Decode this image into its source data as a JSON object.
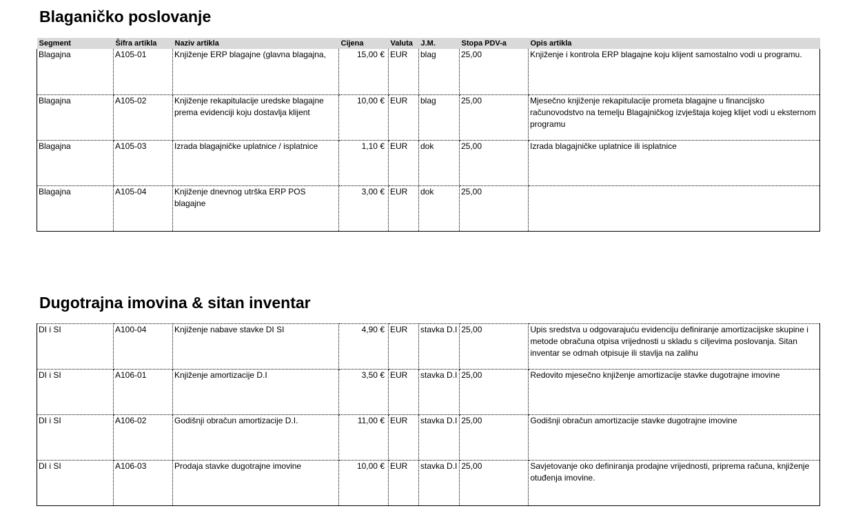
{
  "sections": [
    {
      "title": "Blaganičko poslovanje",
      "headers": [
        "Segment",
        "Šifra artikla",
        "Naziv artikla",
        "Cijena",
        "Valuta",
        "J.M.",
        "Stopa PDV-a",
        "Opis artikla"
      ],
      "rows": [
        [
          "Blagajna",
          "A105-01",
          "Knjiženje ERP blagajne (glavna blagajna,",
          "15,00 €",
          "EUR",
          "blag",
          "25,00",
          "Knjiženje i kontrola ERP blagajne koju klijent samostalno vodi u programu."
        ],
        [
          "Blagajna",
          "A105-02",
          "Knjiženje rekapitulacije uredske blagajne prema evidenciji koju dostavlja klijent",
          "10,00 €",
          "EUR",
          "blag",
          "25,00",
          "Mjesečno knjiženje rekapitulacije prometa blagajne u financijsko računovodstvo na temelju Blagajničkog izvještaja kojeg klijet vodi u eksternom programu"
        ],
        [
          "Blagajna",
          "A105-03",
          "Izrada blagajničke uplatnice / isplatnice",
          "1,10 €",
          "EUR",
          "dok",
          "25,00",
          "Izrada blagajničke uplatnice ili isplatnice"
        ],
        [
          "Blagajna",
          "A105-04",
          "Knjiženje dnevnog utrška ERP POS blagajne",
          "3,00 €",
          "EUR",
          "dok",
          "25,00",
          ""
        ]
      ]
    },
    {
      "title": "Dugotrajna imovina & sitan inventar",
      "rows": [
        [
          "DI i SI",
          "A100-04",
          "Knjiženje nabave stavke DI SI",
          "4,90 €",
          "EUR",
          "stavka D.I",
          "25,00",
          "Upis sredstva u odgovarajuću evidenciju definiranje amortizacijske skupine i metode obračuna otpisa vrijednosti u skladu s ciljevima poslovanja. Sitan inventar se odmah otpisuje ili stavlja na zalihu"
        ],
        [
          "DI i SI",
          "A106-01",
          "Knjiženje amortizacije D.I",
          "3,50 €",
          "EUR",
          "stavka D.I",
          "25,00",
          "Redovito mjesečno knjiženje amortizacije stavke dugotrajne imovine"
        ],
        [
          "DI i SI",
          "A106-02",
          "Godišnji obračun amortizacije D.I.",
          "11,00 €",
          "EUR",
          "stavka D.I",
          "25,00",
          "Godišnji obračun amortizacije stavke dugotrajne imovine"
        ],
        [
          "DI i SI",
          "A106-03",
          "Prodaja stavke dugotrajne imovine",
          "10,00 €",
          "EUR",
          "stavka D.I",
          "25,00",
          "Savjetovanje oko definiranja prodajne vrijednosti, priprema računa, knjiženje otuđenja imovine."
        ]
      ]
    }
  ]
}
